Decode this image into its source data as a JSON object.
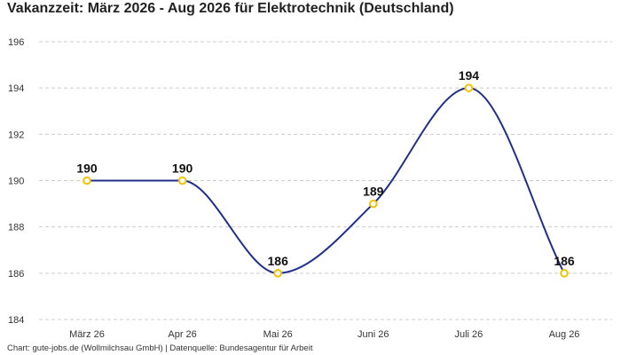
{
  "chart_data": {
    "type": "line",
    "title": "Vakanzzeit: März 2026 - Aug 2026 für Elektrotechnik (Deutschland)",
    "categories": [
      "März 26",
      "Apr 26",
      "Mai 26",
      "Juni 26",
      "Juli 26",
      "Aug 26"
    ],
    "values": [
      190,
      190,
      186,
      189,
      194,
      186
    ],
    "data_labels": [
      "190",
      "190",
      "186",
      "189",
      "194",
      "186"
    ],
    "yticks": [
      "184",
      "186",
      "188",
      "190",
      "192",
      "194",
      "196"
    ],
    "ylim": [
      184,
      196
    ],
    "ytick_values": [
      184,
      186,
      188,
      190,
      192,
      194,
      196
    ],
    "grid": "horizontal-dashed",
    "legend": "none",
    "line_color": "#1f2f8a",
    "marker_color": "#f2c200",
    "footer": "Chart: gute-jobs.de (Wollmilchsau GmbH) | Datenquelle: Bundesagentur für Arbeit"
  }
}
